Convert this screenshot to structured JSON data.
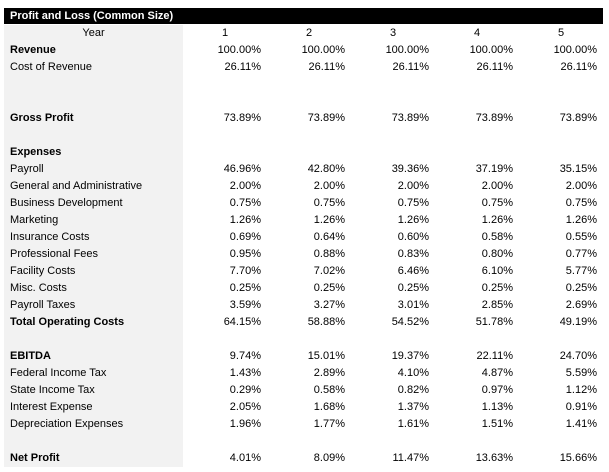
{
  "header": {
    "title": "Profit and Loss (Common Size)"
  },
  "table": {
    "year_label": "Year",
    "years": [
      "1",
      "2",
      "3",
      "4",
      "5"
    ],
    "rows": [
      {
        "label": "Revenue",
        "bold": true,
        "values": [
          "100.00%",
          "100.00%",
          "100.00%",
          "100.00%",
          "100.00%"
        ]
      },
      {
        "label": "Cost of Revenue",
        "values": [
          "26.11%",
          "26.11%",
          "26.11%",
          "26.11%",
          "26.11%"
        ]
      },
      null,
      null,
      {
        "label": "Gross Profit",
        "bold": true,
        "values": [
          "73.89%",
          "73.89%",
          "73.89%",
          "73.89%",
          "73.89%"
        ]
      },
      null,
      {
        "label": "Expenses",
        "bold": true
      },
      {
        "label": "Payroll",
        "values": [
          "46.96%",
          "42.80%",
          "39.36%",
          "37.19%",
          "35.15%"
        ]
      },
      {
        "label": "General and Administrative",
        "values": [
          "2.00%",
          "2.00%",
          "2.00%",
          "2.00%",
          "2.00%"
        ]
      },
      {
        "label": "Business Development",
        "values": [
          "0.75%",
          "0.75%",
          "0.75%",
          "0.75%",
          "0.75%"
        ]
      },
      {
        "label": "Marketing",
        "values": [
          "1.26%",
          "1.26%",
          "1.26%",
          "1.26%",
          "1.26%"
        ]
      },
      {
        "label": "Insurance Costs",
        "values": [
          "0.69%",
          "0.64%",
          "0.60%",
          "0.58%",
          "0.55%"
        ]
      },
      {
        "label": "Professional Fees",
        "values": [
          "0.95%",
          "0.88%",
          "0.83%",
          "0.80%",
          "0.77%"
        ]
      },
      {
        "label": "Facility Costs",
        "values": [
          "7.70%",
          "7.02%",
          "6.46%",
          "6.10%",
          "5.77%"
        ]
      },
      {
        "label": "Misc. Costs",
        "values": [
          "0.25%",
          "0.25%",
          "0.25%",
          "0.25%",
          "0.25%"
        ]
      },
      {
        "label": "Payroll Taxes",
        "values": [
          "3.59%",
          "3.27%",
          "3.01%",
          "2.85%",
          "2.69%"
        ]
      },
      {
        "label": "Total Operating Costs",
        "bold": true,
        "values": [
          "64.15%",
          "58.88%",
          "54.52%",
          "51.78%",
          "49.19%"
        ]
      },
      null,
      {
        "label": "EBITDA",
        "bold": true,
        "values": [
          "9.74%",
          "15.01%",
          "19.37%",
          "22.11%",
          "24.70%"
        ]
      },
      {
        "label": "Federal Income Tax",
        "values": [
          "1.43%",
          "2.89%",
          "4.10%",
          "4.87%",
          "5.59%"
        ]
      },
      {
        "label": "State Income Tax",
        "values": [
          "0.29%",
          "0.58%",
          "0.82%",
          "0.97%",
          "1.12%"
        ]
      },
      {
        "label": "Interest Expense",
        "values": [
          "2.05%",
          "1.68%",
          "1.37%",
          "1.13%",
          "0.91%"
        ]
      },
      {
        "label": "Depreciation Expenses",
        "values": [
          "1.96%",
          "1.77%",
          "1.61%",
          "1.51%",
          "1.41%"
        ]
      },
      null,
      {
        "label": "Net Profit",
        "bold": true,
        "values": [
          "4.01%",
          "8.09%",
          "11.47%",
          "13.63%",
          "15.66%"
        ]
      }
    ]
  }
}
